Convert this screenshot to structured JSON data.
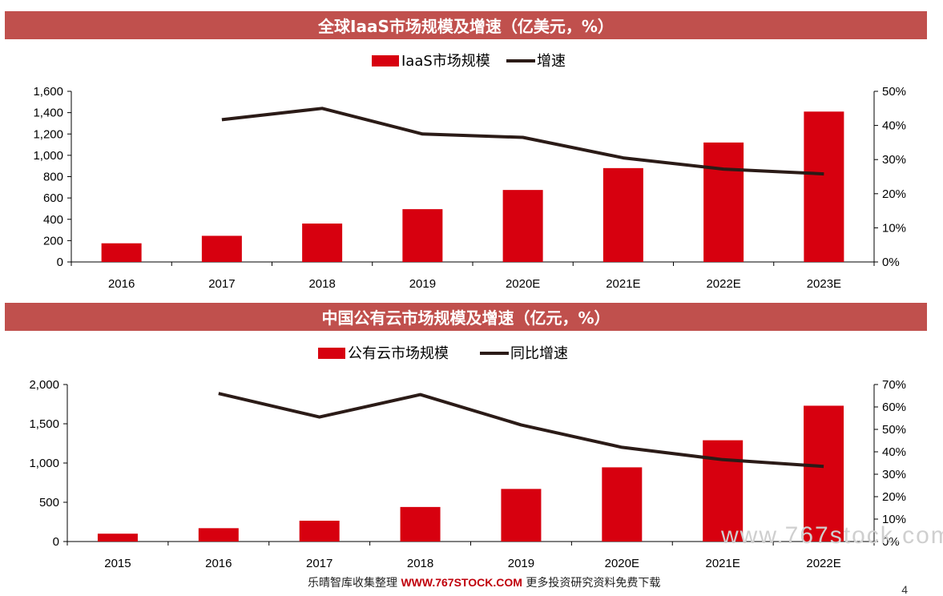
{
  "colors": {
    "banner": "#c0504d",
    "bar": "#d7000f",
    "line": "#2b1b17"
  },
  "chart_data": [
    {
      "type": "bar",
      "title": "全球IaaS市场规模及增速（亿美元，%）",
      "categories": [
        "2016",
        "2017",
        "2018",
        "2019",
        "2020E",
        "2021E",
        "2022E",
        "2023E"
      ],
      "series": [
        {
          "name": "IaaS市场规模",
          "type": "bar",
          "axis": "left",
          "values": [
            175,
            245,
            360,
            495,
            675,
            880,
            1120,
            1410
          ]
        },
        {
          "name": "增速",
          "type": "line",
          "axis": "right",
          "values": [
            null,
            0.417,
            0.45,
            0.375,
            0.365,
            0.305,
            0.272,
            0.258
          ]
        }
      ],
      "ylim": [
        0,
        1600
      ],
      "yticks": [
        "0",
        "200",
        "400",
        "600",
        "800",
        "1,000",
        "1,200",
        "1,400",
        "1,600"
      ],
      "y2lim": [
        0,
        0.5
      ],
      "y2ticks": [
        "0%",
        "10%",
        "20%",
        "30%",
        "40%",
        "50%"
      ],
      "legend": "top-center",
      "grid": false
    },
    {
      "type": "bar",
      "title": "中国公有云市场规模及增速（亿元，%）",
      "categories": [
        "2015",
        "2016",
        "2017",
        "2018",
        "2019",
        "2020E",
        "2021E",
        "2022E"
      ],
      "series": [
        {
          "name": "公有云市场规模",
          "type": "bar",
          "axis": "left",
          "values": [
            100,
            170,
            265,
            440,
            670,
            945,
            1290,
            1730
          ]
        },
        {
          "name": "同比增速",
          "type": "line",
          "axis": "right",
          "values": [
            null,
            0.66,
            0.555,
            0.655,
            0.52,
            0.42,
            0.365,
            0.335
          ]
        }
      ],
      "ylim": [
        0,
        2000
      ],
      "yticks": [
        "0",
        "500",
        "1,000",
        "1,500",
        "2,000"
      ],
      "y2lim": [
        0,
        0.7
      ],
      "y2ticks": [
        "0%",
        "10%",
        "20%",
        "30%",
        "40%",
        "50%",
        "60%",
        "70%"
      ],
      "legend": "top-center",
      "grid": false
    }
  ],
  "footer": {
    "prefix": "乐晴智库收集整理 ",
    "site": "WWW.767STOCK.COM",
    "suffix": " 更多投资研究资料免费下载"
  },
  "watermark": "www.767stock.com",
  "page_number": "4"
}
